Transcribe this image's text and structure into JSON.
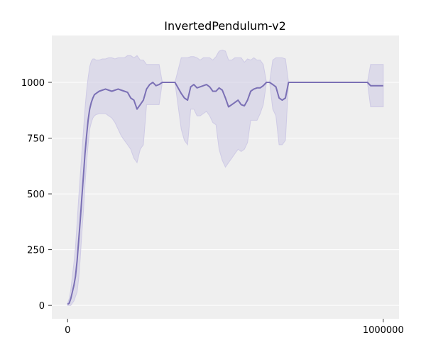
{
  "chart_data": {
    "type": "line",
    "title": "InvertedPendulum-v2",
    "xlabel": "",
    "ylabel": "",
    "xlim": [
      -50000,
      1050000
    ],
    "ylim": [
      -60,
      1210
    ],
    "xticks": [
      0,
      1000000
    ],
    "xtick_labels": [
      "0",
      "1000000"
    ],
    "yticks": [
      0,
      250,
      500,
      750,
      1000
    ],
    "ytick_labels": [
      "0",
      "250",
      "500",
      "750",
      "1000"
    ],
    "grid": true,
    "legend": false,
    "colors": {
      "background": "#efefef",
      "grid": "#ffffff",
      "line": "#7b70b5",
      "band": "#ccc8e4"
    },
    "series": [
      {
        "x": [
          0,
          5000,
          10000,
          15000,
          20000,
          25000,
          30000,
          35000,
          40000,
          45000,
          50000,
          55000,
          60000,
          65000,
          70000,
          75000,
          80000,
          85000,
          90000,
          100000,
          110000,
          120000,
          130000,
          140000,
          150000,
          160000,
          170000,
          180000,
          190000,
          200000,
          210000,
          220000,
          230000,
          240000,
          250000,
          260000,
          270000,
          280000,
          290000,
          300000,
          320000,
          340000,
          360000,
          370000,
          380000,
          390000,
          400000,
          410000,
          420000,
          430000,
          440000,
          450000,
          460000,
          470000,
          480000,
          490000,
          500000,
          510000,
          520000,
          530000,
          540000,
          550000,
          560000,
          570000,
          580000,
          590000,
          600000,
          610000,
          620000,
          630000,
          640000,
          650000,
          660000,
          670000,
          680000,
          690000,
          700000,
          710000,
          720000,
          730000,
          740000,
          760000,
          800000,
          850000,
          900000,
          950000,
          960000,
          980000,
          1000000
        ],
        "y": [
          5,
          10,
          30,
          60,
          90,
          130,
          200,
          290,
          380,
          480,
          580,
          680,
          760,
          830,
          880,
          910,
          930,
          945,
          950,
          960,
          965,
          970,
          965,
          960,
          965,
          970,
          965,
          960,
          955,
          930,
          920,
          880,
          900,
          920,
          970,
          990,
          1000,
          985,
          990,
          1000,
          1000,
          1000,
          950,
          930,
          920,
          980,
          990,
          975,
          980,
          985,
          990,
          980,
          960,
          960,
          975,
          965,
          930,
          890,
          900,
          910,
          920,
          900,
          895,
          920,
          960,
          970,
          975,
          975,
          985,
          1000,
          1000,
          990,
          980,
          930,
          920,
          930,
          1000,
          1000,
          1000,
          1000,
          1000,
          1000,
          1000,
          1000,
          1000,
          1000,
          985,
          985,
          985
        ],
        "lower": [
          0,
          0,
          0,
          10,
          20,
          40,
          60,
          120,
          210,
          320,
          420,
          540,
          640,
          720,
          790,
          820,
          840,
          850,
          855,
          860,
          860,
          860,
          850,
          840,
          820,
          790,
          760,
          740,
          720,
          700,
          660,
          640,
          700,
          720,
          900,
          900,
          900,
          900,
          900,
          1000,
          1000,
          1000,
          790,
          740,
          720,
          880,
          880,
          850,
          850,
          860,
          870,
          850,
          820,
          810,
          700,
          650,
          620,
          640,
          660,
          680,
          700,
          690,
          700,
          730,
          830,
          830,
          830,
          860,
          900,
          1000,
          1000,
          880,
          850,
          720,
          720,
          740,
          1000,
          1000,
          1000,
          1000,
          1000,
          1000,
          1000,
          1000,
          1000,
          1000,
          890,
          890,
          890
        ],
        "upper": [
          10,
          30,
          70,
          130,
          190,
          260,
          370,
          480,
          580,
          680,
          780,
          880,
          960,
          1020,
          1070,
          1095,
          1105,
          1105,
          1100,
          1100,
          1105,
          1105,
          1110,
          1110,
          1105,
          1110,
          1110,
          1110,
          1120,
          1120,
          1110,
          1120,
          1100,
          1100,
          1080,
          1080,
          1080,
          1080,
          1080,
          1000,
          1000,
          1000,
          1110,
          1110,
          1110,
          1115,
          1115,
          1110,
          1100,
          1110,
          1110,
          1110,
          1100,
          1115,
          1140,
          1145,
          1140,
          1100,
          1100,
          1110,
          1110,
          1110,
          1090,
          1105,
          1100,
          1110,
          1100,
          1100,
          1080,
          1000,
          1000,
          1100,
          1110,
          1110,
          1110,
          1105,
          1000,
          1000,
          1000,
          1000,
          1000,
          1000,
          1000,
          1000,
          1000,
          1000,
          1080,
          1080,
          1080
        ]
      }
    ]
  }
}
